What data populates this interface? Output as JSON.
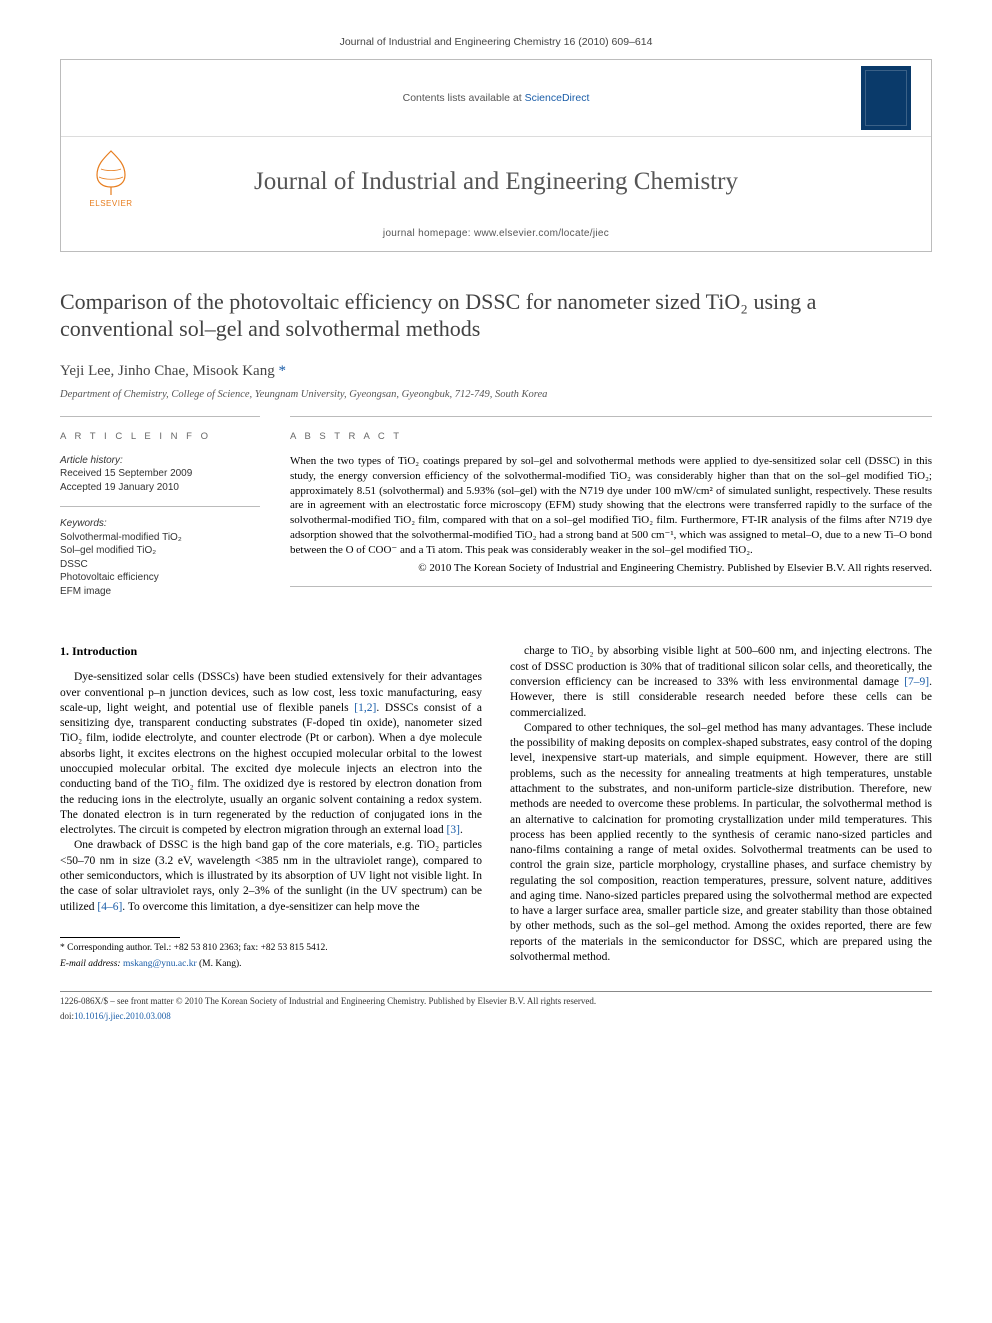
{
  "running_head": "Journal of Industrial and Engineering Chemistry 16 (2010) 609–614",
  "header": {
    "contents_prefix": "Contents lists available at ",
    "contents_link": "ScienceDirect",
    "journal_name": "Journal of Industrial and Engineering Chemistry",
    "homepage_prefix": "journal homepage: ",
    "homepage_url": "www.elsevier.com/locate/jiec",
    "publisher_label": "ELSEVIER"
  },
  "title": "Comparison of the photovoltaic efficiency on DSSC for nanometer sized TiO₂ using a conventional sol–gel and solvothermal methods",
  "authors": "Yeji Lee, Jinho Chae, Misook Kang",
  "corr_mark": "*",
  "affiliation": "Department of Chemistry, College of Science, Yeungnam University, Gyeongsan, Gyeongbuk, 712-749, South Korea",
  "info": {
    "head_left": "A R T I C L E   I N F O",
    "head_right": "A B S T R A C T",
    "history_label": "Article history:",
    "received": "Received 15 September 2009",
    "accepted": "Accepted 19 January 2010",
    "keywords_label": "Keywords:",
    "keywords": [
      "Solvothermal-modified TiO₂",
      "Sol–gel modified TiO₂",
      "DSSC",
      "Photovoltaic efficiency",
      "EFM image"
    ]
  },
  "abstract": "When the two types of TiO₂ coatings prepared by sol–gel and solvothermal methods were applied to dye-sensitized solar cell (DSSC) in this study, the energy conversion efficiency of the solvothermal-modified TiO₂ was considerably higher than that on the sol–gel modified TiO₂; approximately 8.51 (solvothermal) and 5.93% (sol–gel) with the N719 dye under 100 mW/cm² of simulated sunlight, respectively. These results are in agreement with an electrostatic force microscopy (EFM) study showing that the electrons were transferred rapidly to the surface of the solvothermal-modified TiO₂ film, compared with that on a sol–gel modified TiO₂ film. Furthermore, FT-IR analysis of the films after N719 dye adsorption showed that the solvothermal-modified TiO₂ had a strong band at 500 cm⁻¹, which was assigned to metal–O, due to a new Ti–O bond between the O of COO⁻ and a Ti atom. This peak was considerably weaker in the sol–gel modified TiO₂.",
  "copyright": "© 2010 The Korean Society of Industrial and Engineering Chemistry. Published by Elsevier B.V. All rights reserved.",
  "section1_head": "1. Introduction",
  "col1": {
    "p1": "Dye-sensitized solar cells (DSSCs) have been studied extensively for their advantages over conventional p–n junction devices, such as low cost, less toxic manufacturing, easy scale-up, light weight, and potential use of flexible panels [1,2]. DSSCs consist of a sensitizing dye, transparent conducting substrates (F-doped tin oxide), nanometer sized TiO₂ film, iodide electrolyte, and counter electrode (Pt or carbon). When a dye molecule absorbs light, it excites electrons on the highest occupied molecular orbital to the lowest unoccupied molecular orbital. The excited dye molecule injects an electron into the conducting band of the TiO₂ film. The oxidized dye is restored by electron donation from the reducing ions in the electrolyte, usually an organic solvent containing a redox system. The donated electron is in turn regenerated by the reduction of conjugated ions in the electrolytes. The circuit is competed by electron migration through an external load [3].",
    "p2": "One drawback of DSSC is the high band gap of the core materials, e.g. TiO₂ particles <50–70 nm in size (3.2 eV, wavelength <385 nm in the ultraviolet range), compared to other semiconductors, which is illustrated by its absorption of UV light not visible light. In the case of solar ultraviolet rays, only 2–3% of the sunlight (in the UV spectrum) can be utilized [4–6]. To overcome this limitation, a dye-sensitizer can help move the"
  },
  "col2": {
    "p1": "charge to TiO₂ by absorbing visible light at 500–600 nm, and injecting electrons. The cost of DSSC production is 30% that of traditional silicon solar cells, and theoretically, the conversion efficiency can be increased to 33% with less environmental damage [7–9]. However, there is still considerable research needed before these cells can be commercialized.",
    "p2": "Compared to other techniques, the sol–gel method has many advantages. These include the possibility of making deposits on complex-shaped substrates, easy control of the doping level, inexpensive start-up materials, and simple equipment. However, there are still problems, such as the necessity for annealing treatments at high temperatures, unstable attachment to the substrates, and non-uniform particle-size distribution. Therefore, new methods are needed to overcome these problems. In particular, the solvothermal method is an alternative to calcination for promoting crystallization under mild temperatures. This process has been applied recently to the synthesis of ceramic nano-sized particles and nano-films containing a range of metal oxides. Solvothermal treatments can be used to control the grain size, particle morphology, crystalline phases, and surface chemistry by regulating the sol composition, reaction temperatures, pressure, solvent nature, additives and aging time. Nano-sized particles prepared using the solvothermal method are expected to have a larger surface area, smaller particle size, and greater stability than those obtained by other methods, such as the sol–gel method. Among the oxides reported, there are few reports of the materials in the semiconductor for DSSC, which are prepared using the solvothermal method."
  },
  "footnote": {
    "corr": "* Corresponding author. Tel.: +82 53 810 2363; fax: +82 53 815 5412.",
    "email_label": "E-mail address:",
    "email": "mskang@ynu.ac.kr",
    "email_suffix": "(M. Kang)."
  },
  "bottom": {
    "line1": "1226-086X/$ – see front matter © 2010 The Korean Society of Industrial and Engineering Chemistry. Published by Elsevier B.V. All rights reserved.",
    "doi_label": "doi:",
    "doi": "10.1016/j.jiec.2010.03.008"
  },
  "colors": {
    "link": "#1a5da8",
    "border": "#bcbcbc",
    "text_grey": "#555555",
    "elsevier_orange": "#e77c1c"
  }
}
